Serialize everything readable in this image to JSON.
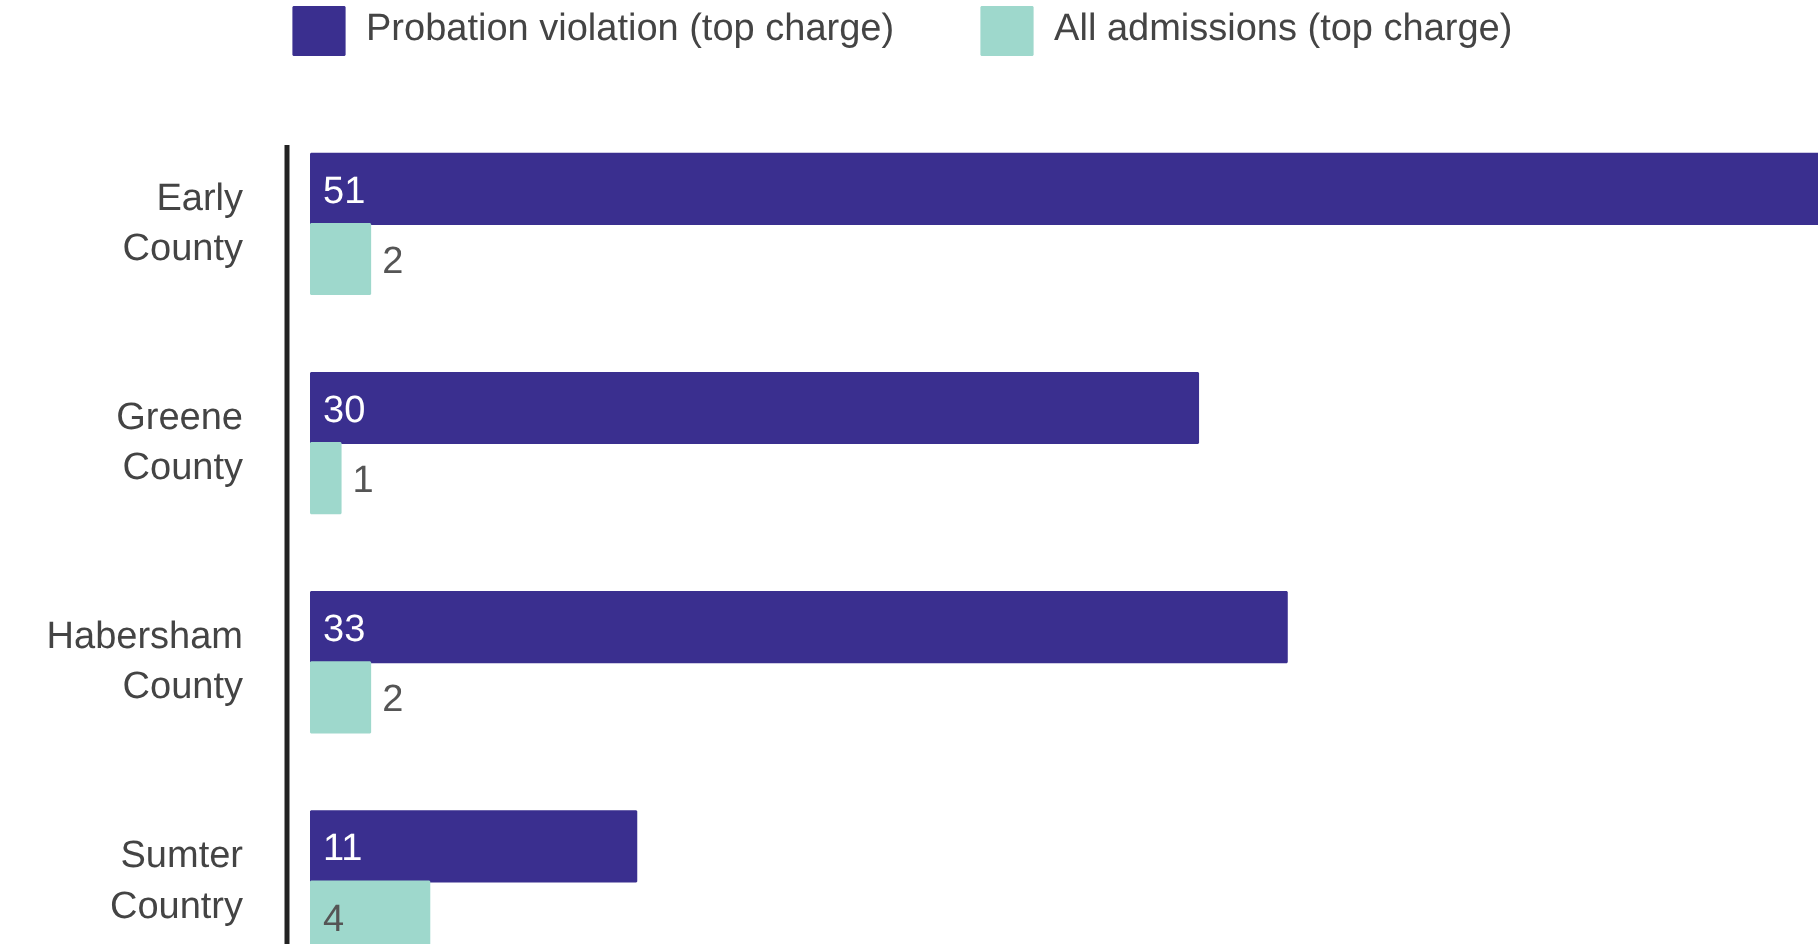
{
  "chart_data": {
    "type": "bar",
    "orientation": "horizontal",
    "categories": [
      "Early County",
      "Greene County",
      "Habersham County",
      "Sumter Country"
    ],
    "series": [
      {
        "name": "Probation violation (top charge)",
        "color": "#3a2f8f",
        "values": [
          51,
          30,
          33,
          11
        ]
      },
      {
        "name": "All admissions (top charge)",
        "color": "#9ed8cc",
        "values": [
          2,
          1,
          2,
          4
        ]
      }
    ],
    "data_labels": true,
    "legend": "top left",
    "grid": false,
    "tick_labels": "y"
  }
}
